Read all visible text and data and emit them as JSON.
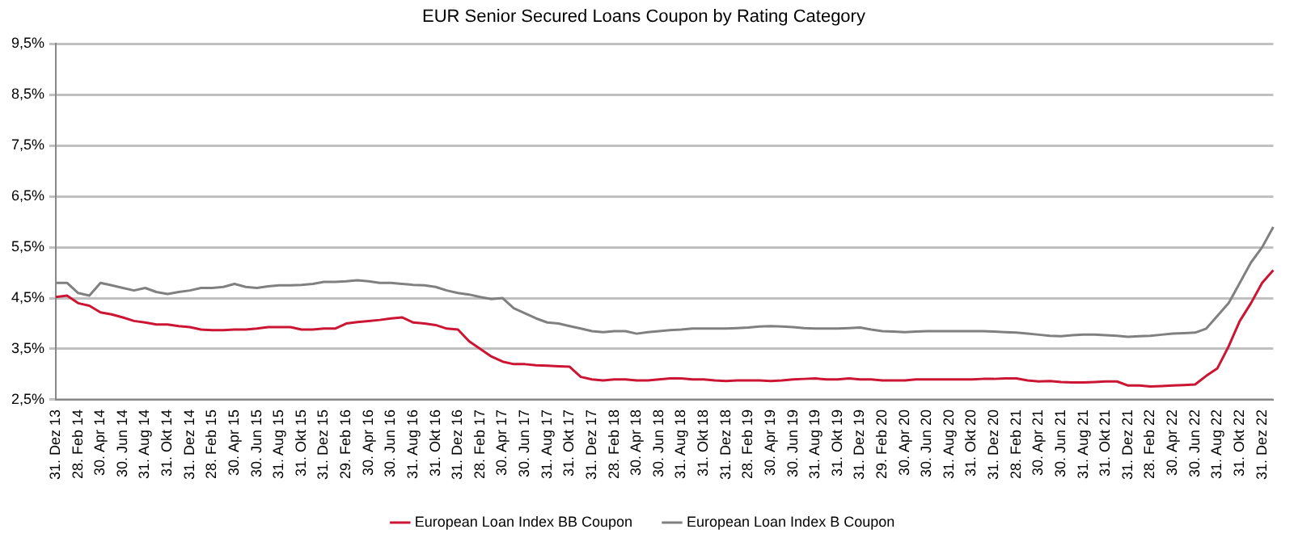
{
  "chart_data": {
    "type": "line",
    "title": "EUR Senior Secured Loans Coupon by Rating Category",
    "categories": [
      "31. Dez 13",
      null,
      "28. Feb 14",
      null,
      "30. Apr 14",
      null,
      "30. Jun 14",
      null,
      "31. Aug 14",
      null,
      "31. Okt 14",
      null,
      "31. Dez 14",
      null,
      "28. Feb 15",
      null,
      "30. Apr 15",
      null,
      "30. Jun 15",
      null,
      "31. Aug 15",
      null,
      "31. Okt 15",
      null,
      "31. Dez 15",
      null,
      "29. Feb 16",
      null,
      "30. Apr 16",
      null,
      "30. Jun 16",
      null,
      "31. Aug 16",
      null,
      "31. Okt 16",
      null,
      "31. Dez 16",
      null,
      "28. Feb 17",
      null,
      "30. Apr 17",
      null,
      "30. Jun 17",
      null,
      "31. Aug 17",
      null,
      "31. Okt 17",
      null,
      "31. Dez 17",
      null,
      "28. Feb 18",
      null,
      "30. Apr 18",
      null,
      "30. Jun 18",
      null,
      "31. Aug 18",
      null,
      "31. Okt 18",
      null,
      "31. Dez 18",
      null,
      "28. Feb 19",
      null,
      "30. Apr 19",
      null,
      "30. Jun 19",
      null,
      "31. Aug 19",
      null,
      "31. Okt 19",
      null,
      "31. Dez 19",
      null,
      "29. Feb 20",
      null,
      "30. Apr 20",
      null,
      "30. Jun 20",
      null,
      "31. Aug 20",
      null,
      "31. Okt 20",
      null,
      "31. Dez 20",
      null,
      "28. Feb 21",
      null,
      "30. Apr 21",
      null,
      "30. Jun 21",
      null,
      "31. Aug 21",
      null,
      "31. Okt 21",
      null,
      "31. Dez 21",
      null,
      "28. Feb 22",
      null,
      "30. Apr 22",
      null,
      "30. Jun 22",
      null,
      "31. Aug 22",
      null,
      "31. Okt 22",
      null,
      "31. Dez 22",
      null
    ],
    "series": [
      {
        "name": "European Loan Index BB Coupon",
        "color": "#cc1433",
        "values": [
          4.52,
          4.55,
          4.4,
          4.35,
          4.22,
          4.18,
          4.12,
          4.05,
          4.02,
          3.98,
          3.98,
          3.95,
          3.93,
          3.88,
          3.87,
          3.87,
          3.88,
          3.88,
          3.9,
          3.93,
          3.93,
          3.93,
          3.88,
          3.88,
          3.9,
          3.9,
          4.0,
          4.03,
          4.05,
          4.07,
          4.1,
          4.12,
          4.02,
          4.0,
          3.97,
          3.9,
          3.88,
          3.65,
          3.5,
          3.35,
          3.25,
          3.2,
          3.2,
          3.18,
          3.17,
          3.16,
          3.15,
          2.95,
          2.9,
          2.88,
          2.9,
          2.9,
          2.88,
          2.88,
          2.9,
          2.92,
          2.92,
          2.9,
          2.9,
          2.88,
          2.87,
          2.88,
          2.88,
          2.88,
          2.87,
          2.88,
          2.9,
          2.91,
          2.92,
          2.9,
          2.9,
          2.92,
          2.9,
          2.9,
          2.88,
          2.88,
          2.88,
          2.9,
          2.9,
          2.9,
          2.9,
          2.9,
          2.9,
          2.91,
          2.91,
          2.92,
          2.92,
          2.88,
          2.86,
          2.87,
          2.85,
          2.84,
          2.84,
          2.85,
          2.86,
          2.86,
          2.78,
          2.78,
          2.76,
          2.77,
          2.78,
          2.79,
          2.8,
          2.97,
          3.12,
          3.55,
          4.05,
          4.4,
          4.8,
          5.05
        ]
      },
      {
        "name": "European Loan Index B Coupon",
        "color": "#808080",
        "values": [
          4.8,
          4.8,
          4.6,
          4.55,
          4.8,
          4.75,
          4.7,
          4.65,
          4.7,
          4.62,
          4.58,
          4.62,
          4.65,
          4.7,
          4.7,
          4.72,
          4.78,
          4.72,
          4.7,
          4.73,
          4.75,
          4.75,
          4.76,
          4.78,
          4.82,
          4.82,
          4.83,
          4.85,
          4.83,
          4.8,
          4.8,
          4.78,
          4.76,
          4.75,
          4.72,
          4.65,
          4.6,
          4.57,
          4.52,
          4.48,
          4.5,
          4.3,
          4.2,
          4.1,
          4.02,
          4.0,
          3.95,
          3.9,
          3.85,
          3.83,
          3.85,
          3.85,
          3.8,
          3.83,
          3.85,
          3.87,
          3.88,
          3.9,
          3.9,
          3.9,
          3.9,
          3.91,
          3.92,
          3.94,
          3.95,
          3.94,
          3.93,
          3.91,
          3.9,
          3.9,
          3.9,
          3.91,
          3.92,
          3.88,
          3.85,
          3.84,
          3.83,
          3.84,
          3.85,
          3.85,
          3.85,
          3.85,
          3.85,
          3.85,
          3.84,
          3.83,
          3.82,
          3.8,
          3.78,
          3.76,
          3.75,
          3.77,
          3.78,
          3.78,
          3.77,
          3.76,
          3.74,
          3.75,
          3.76,
          3.78,
          3.8,
          3.81,
          3.82,
          3.9,
          4.15,
          4.4,
          4.8,
          5.2,
          5.5,
          5.9
        ]
      }
    ],
    "ylim": [
      2.5,
      9.5
    ],
    "yticks": [
      {
        "value": 2.5,
        "label": "2,5%"
      },
      {
        "value": 3.5,
        "label": "3,5%"
      },
      {
        "value": 4.5,
        "label": "4,5%"
      },
      {
        "value": 5.5,
        "label": "5,5%"
      },
      {
        "value": 6.5,
        "label": "6,5%"
      },
      {
        "value": 7.5,
        "label": "7,5%"
      },
      {
        "value": 8.5,
        "label": "8,5%"
      },
      {
        "value": 9.5,
        "label": "9,5%"
      }
    ],
    "grid": "y",
    "legend": "bottom",
    "marker": "none",
    "line_style": "solid"
  }
}
